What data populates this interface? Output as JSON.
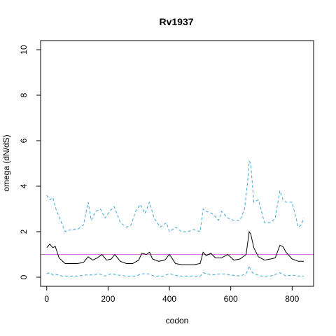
{
  "chart_data": {
    "type": "line",
    "title": "Rv1937",
    "xlabel": "codon",
    "ylabel": "omega (dN/dS)",
    "xlim": [
      -20,
      870
    ],
    "ylim": [
      -0.4,
      10.4
    ],
    "xticks": [
      0,
      200,
      400,
      600,
      800
    ],
    "yticks": [
      0,
      2,
      4,
      6,
      8,
      10
    ],
    "reference_line": {
      "y": 1,
      "color": "#c77cc7"
    },
    "grid": false,
    "series": [
      {
        "role": "upper",
        "color": "#3fa7d6",
        "dash": "dashed",
        "x": [
          0,
          10,
          20,
          30,
          45,
          60,
          80,
          100,
          120,
          135,
          145,
          160,
          175,
          190,
          205,
          220,
          240,
          260,
          275,
          290,
          305,
          320,
          335,
          350,
          370,
          390,
          400,
          420,
          440,
          460,
          480,
          500,
          510,
          520,
          540,
          560,
          570,
          590,
          610,
          630,
          645,
          655,
          660,
          665,
          675,
          690,
          710,
          730,
          745,
          760,
          770,
          780,
          800,
          820,
          830,
          838
        ],
        "y": [
          3.6,
          3.4,
          3.5,
          3.0,
          2.5,
          2.0,
          2.1,
          2.1,
          2.3,
          3.3,
          2.5,
          2.9,
          3.0,
          2.6,
          2.9,
          3.1,
          2.4,
          2.2,
          2.3,
          2.9,
          3.2,
          2.8,
          3.3,
          2.6,
          2.2,
          2.4,
          2.0,
          2.2,
          2.0,
          2.0,
          2.1,
          2.0,
          3.0,
          2.9,
          2.8,
          2.5,
          2.9,
          2.6,
          2.5,
          2.5,
          3.0,
          4.2,
          5.1,
          5.0,
          3.3,
          3.4,
          2.4,
          2.4,
          2.6,
          3.8,
          3.4,
          3.3,
          3.3,
          2.2,
          2.3,
          2.6
        ]
      },
      {
        "role": "mean",
        "color": "#000000",
        "dash": "solid",
        "x": [
          0,
          10,
          20,
          28,
          40,
          60,
          80,
          100,
          120,
          135,
          150,
          165,
          180,
          195,
          210,
          222,
          240,
          260,
          280,
          300,
          310,
          325,
          335,
          345,
          365,
          385,
          400,
          420,
          440,
          460,
          480,
          500,
          510,
          520,
          535,
          550,
          570,
          590,
          610,
          630,
          650,
          660,
          665,
          675,
          690,
          710,
          730,
          745,
          760,
          770,
          780,
          800,
          820,
          838
        ],
        "y": [
          1.3,
          1.45,
          1.3,
          1.35,
          0.85,
          0.6,
          0.6,
          0.6,
          0.65,
          0.9,
          0.75,
          0.85,
          1.0,
          0.75,
          0.8,
          1.0,
          0.7,
          0.6,
          0.6,
          0.75,
          1.05,
          1.0,
          1.1,
          0.8,
          0.7,
          0.75,
          1.0,
          0.6,
          0.55,
          0.55,
          0.55,
          0.6,
          1.1,
          0.95,
          1.05,
          0.85,
          0.85,
          1.0,
          0.75,
          0.8,
          1.0,
          2.0,
          1.9,
          1.3,
          0.9,
          0.75,
          0.8,
          0.85,
          1.4,
          1.35,
          1.1,
          0.8,
          0.7,
          0.7
        ]
      },
      {
        "role": "lower",
        "color": "#3fa7d6",
        "dash": "dashed",
        "x": [
          0,
          10,
          20,
          30,
          50,
          80,
          100,
          130,
          150,
          170,
          190,
          210,
          230,
          260,
          290,
          310,
          330,
          350,
          380,
          400,
          430,
          460,
          500,
          510,
          520,
          540,
          570,
          600,
          630,
          650,
          655,
          660,
          665,
          675,
          700,
          730,
          760,
          780,
          800,
          820,
          838
        ],
        "y": [
          0.15,
          0.2,
          0.1,
          0.12,
          0.05,
          0.05,
          0.05,
          0.1,
          0.1,
          0.15,
          0.05,
          0.15,
          0.1,
          0.05,
          0.05,
          0.15,
          0.15,
          0.05,
          0.05,
          0.15,
          0.05,
          0.05,
          0.05,
          0.2,
          0.15,
          0.1,
          0.15,
          0.1,
          0.05,
          0.15,
          0.3,
          0.5,
          0.3,
          0.15,
          0.05,
          0.05,
          0.2,
          0.05,
          0.1,
          0.05,
          0.05
        ]
      }
    ]
  }
}
